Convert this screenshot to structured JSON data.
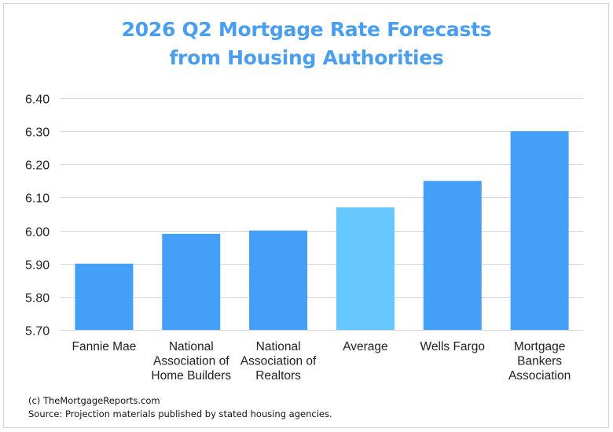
{
  "chart_data": {
    "type": "bar",
    "title": "2026 Q2 Mortgage Rate Forecasts from Housing Authorities",
    "title_lines": [
      "2026 Q2 Mortgage Rate Forecasts",
      "from Housing Authorities"
    ],
    "xlabel": "",
    "ylabel": "",
    "categories": [
      "Fannie Mae",
      "National Association of Home Builders",
      "National Association of Realtors",
      "Average",
      "Wells Fargo",
      "Mortgage Bankers Association"
    ],
    "category_lines": [
      [
        "Fannie Mae"
      ],
      [
        "National",
        "Association of",
        "Home Builders"
      ],
      [
        "National",
        "Association of",
        "Realtors"
      ],
      [
        "Average"
      ],
      [
        "Wells Fargo"
      ],
      [
        "Mortgage",
        "Bankers",
        "Association"
      ]
    ],
    "values": [
      5.9,
      5.99,
      6.0,
      6.07,
      6.15,
      6.3
    ],
    "highlight_index": 3,
    "ylim": [
      5.7,
      6.4
    ],
    "yticks": [
      "5.70",
      "5.80",
      "5.90",
      "6.00",
      "6.10",
      "6.20",
      "6.30",
      "6.40"
    ],
    "ytick_values": [
      5.7,
      5.8,
      5.9,
      6.0,
      6.1,
      6.2,
      6.3,
      6.4
    ],
    "grid": true,
    "legend": "none",
    "colors": {
      "bar": "#439ff7",
      "highlight_bar": "#66c8ff",
      "title": "#4a9ef0",
      "grid": "#d9d9d9"
    }
  },
  "footer": {
    "copyright": "(c) TheMortgageReports.com",
    "source": "Source: Projection materials published by stated housing agencies."
  }
}
